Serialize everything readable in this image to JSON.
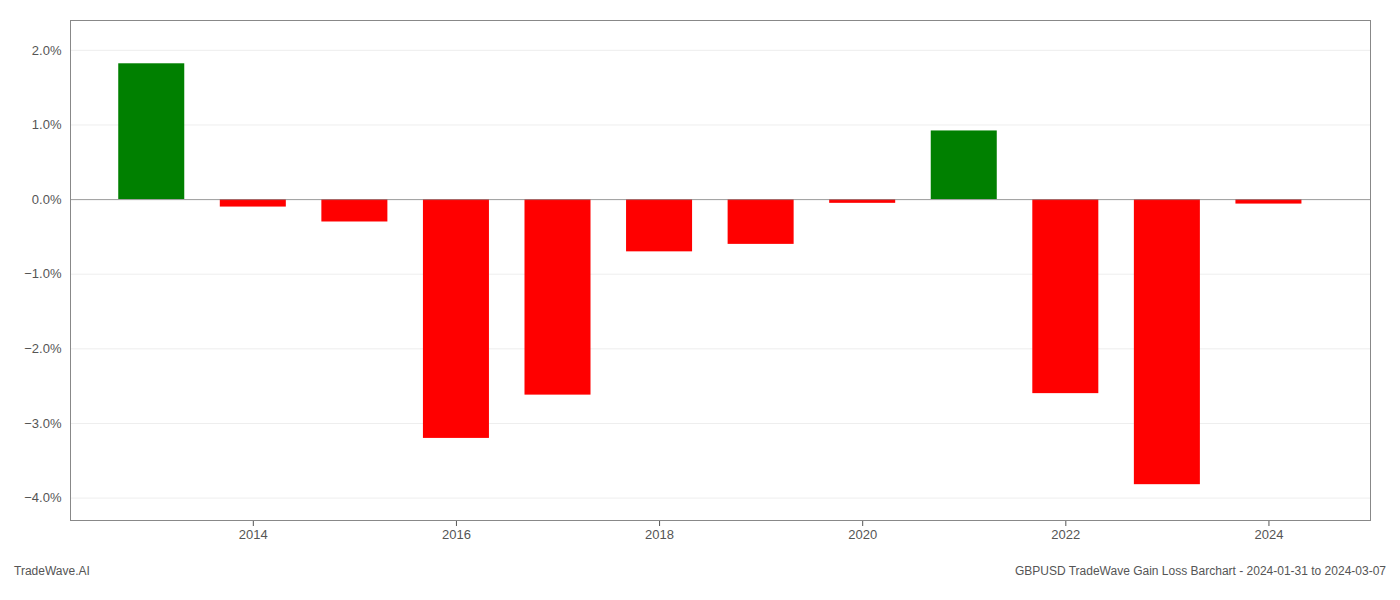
{
  "chart_data": {
    "type": "bar",
    "x": [
      2013,
      2014,
      2015,
      2016,
      2017,
      2018,
      2019,
      2020,
      2021,
      2022,
      2023,
      2024
    ],
    "values": [
      1.82,
      -0.1,
      -0.3,
      -3.2,
      -2.62,
      -0.7,
      -0.6,
      -0.05,
      0.92,
      -2.6,
      -3.82,
      -0.06
    ],
    "colors": [
      "#008000",
      "#ff0000",
      "#ff0000",
      "#ff0000",
      "#ff0000",
      "#ff0000",
      "#ff0000",
      "#ff0000",
      "#008000",
      "#ff0000",
      "#ff0000",
      "#ff0000"
    ],
    "xlim": [
      2012.2,
      2025.0
    ],
    "xticks": [
      2014,
      2016,
      2018,
      2020,
      2022,
      2024
    ],
    "ylim": [
      -4.3,
      2.4
    ],
    "yticks": [
      {
        "value": -4.0,
        "label": "−4.0%"
      },
      {
        "value": -3.0,
        "label": "−3.0%"
      },
      {
        "value": -2.0,
        "label": "−2.0%"
      },
      {
        "value": -1.0,
        "label": "−1.0%"
      },
      {
        "value": 0.0,
        "label": "0.0%"
      },
      {
        "value": 1.0,
        "label": "1.0%"
      },
      {
        "value": 2.0,
        "label": "2.0%"
      }
    ],
    "grid": true,
    "annotations": [
      "TradeWave.AI",
      "GBPUSD TradeWave Gain Loss Barchart - 2024-01-31 to 2024-03-07"
    ]
  }
}
